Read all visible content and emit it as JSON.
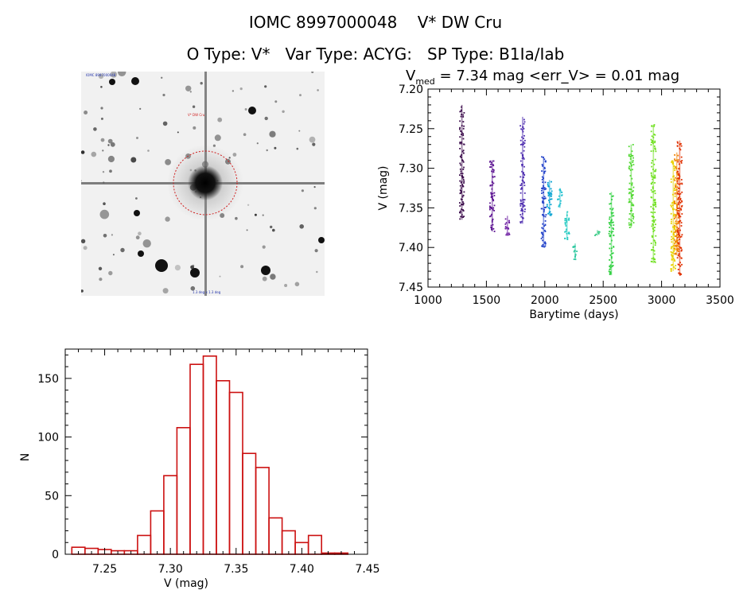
{
  "header": {
    "line1": "IOMC 8997000048    V* DW Cru",
    "line2": "O Type: V*   Var Type: ACYG:   SP Type: B1Ia/Iab"
  },
  "lightcurve": {
    "title_v": "V",
    "title_sub": "med",
    "title_rest": " = 7.34 mag <err_V> = 0.01 mag"
  },
  "image": {
    "target_label": "V* DW Cru",
    "corner_label_top": "IOMC 8997000048",
    "corner_label_bottom": "1.3 deg x 1.3 deg"
  },
  "chart_data": [
    {
      "type": "scatter",
      "title": "V_med = 7.34 mag <err_V> = 0.01 mag",
      "xlabel": "Barytime (days)",
      "ylabel": "V (mag)",
      "xlim": [
        1000,
        3500
      ],
      "ylim": [
        7.45,
        7.2
      ],
      "xticks": [
        "1000",
        "1500",
        "2000",
        "2500",
        "3000",
        "3500"
      ],
      "yticks": [
        "7.20",
        "7.25",
        "7.30",
        "7.35",
        "7.40",
        "7.45"
      ],
      "series": [
        {
          "x": 1290,
          "ymin": 7.22,
          "ymax": 7.365,
          "color": "#3a0a4a"
        },
        {
          "x": 1550,
          "ymin": 7.29,
          "ymax": 7.38,
          "color": "#5a1090"
        },
        {
          "x": 1680,
          "ymin": 7.36,
          "ymax": 7.385,
          "color": "#6a1aa0"
        },
        {
          "x": 1810,
          "ymin": 7.235,
          "ymax": 7.37,
          "color": "#5030b0"
        },
        {
          "x": 1990,
          "ymin": 7.285,
          "ymax": 7.4,
          "color": "#2040c8"
        },
        {
          "x": 2040,
          "ymin": 7.315,
          "ymax": 7.36,
          "color": "#00a0d0"
        },
        {
          "x": 2130,
          "ymin": 7.325,
          "ymax": 7.35,
          "color": "#20c0d0"
        },
        {
          "x": 2190,
          "ymin": 7.355,
          "ymax": 7.39,
          "color": "#20c8c0"
        },
        {
          "x": 2260,
          "ymin": 7.395,
          "ymax": 7.415,
          "color": "#30c8a0"
        },
        {
          "x": 2450,
          "ymin": 7.378,
          "ymax": 7.385,
          "color": "#30c880"
        },
        {
          "x": 2570,
          "ymin": 7.33,
          "ymax": 7.435,
          "color": "#30d040"
        },
        {
          "x": 2740,
          "ymin": 7.27,
          "ymax": 7.375,
          "color": "#50d830"
        },
        {
          "x": 2930,
          "ymin": 7.245,
          "ymax": 7.42,
          "color": "#70e020"
        },
        {
          "x": 3100,
          "ymin": 7.29,
          "ymax": 7.43,
          "color": "#e8d000"
        },
        {
          "x": 3130,
          "ymin": 7.28,
          "ymax": 7.41,
          "color": "#f08000"
        },
        {
          "x": 3155,
          "ymin": 7.265,
          "ymax": 7.435,
          "color": "#e03000"
        }
      ]
    },
    {
      "type": "bar",
      "title": "",
      "xlabel": "V (mag)",
      "ylabel": "N",
      "xlim": [
        7.22,
        7.45
      ],
      "ylim": [
        0,
        175
      ],
      "xticks": [
        "7.25",
        "7.30",
        "7.35",
        "7.40",
        "7.45"
      ],
      "yticks": [
        "0",
        "50",
        "100",
        "150"
      ],
      "bin_width": 0.01,
      "bin_starts": [
        7.225,
        7.235,
        7.245,
        7.255,
        7.265,
        7.275,
        7.285,
        7.295,
        7.305,
        7.315,
        7.325,
        7.335,
        7.345,
        7.355,
        7.365,
        7.375,
        7.385,
        7.395,
        7.405,
        7.415,
        7.425,
        7.435
      ],
      "values": [
        6,
        5,
        4,
        3,
        3,
        16,
        37,
        67,
        108,
        162,
        169,
        148,
        138,
        86,
        74,
        31,
        20,
        10,
        16,
        1,
        1,
        0
      ],
      "bar_color": "#cc1111"
    }
  ]
}
